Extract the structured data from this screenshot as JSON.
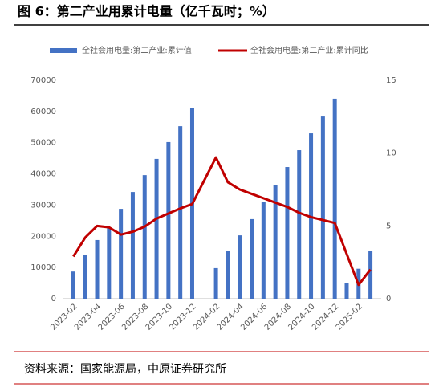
{
  "chart_data": {
    "type": "bar_line",
    "title": "图 6：第二产业用累计电量（亿千瓦时；%）",
    "source": "资料来源：国家能源局，中原证券研究所",
    "categories": [
      "2023-02",
      null,
      "2023-04",
      null,
      "2023-06",
      null,
      "2023-08",
      null,
      "2023-10",
      null,
      "2023-12",
      null,
      "2024-02",
      null,
      "2024-04",
      null,
      "2024-06",
      null,
      "2024-08",
      null,
      "2024-10",
      null,
      "2024-12",
      null,
      "2025-02",
      null
    ],
    "series": [
      {
        "name": "全社会用电量:第二产业:累计值",
        "color": "#4472c4",
        "type": "bar",
        "values": [
          8700,
          13900,
          18800,
          22600,
          28800,
          34200,
          39600,
          44800,
          50200,
          55300,
          61000,
          null,
          9800,
          15200,
          20300,
          25500,
          30900,
          36500,
          42200,
          47600,
          53000,
          58400,
          64100,
          5100,
          9600,
          15200
        ]
      },
      {
        "name": "全社会用电量:第二产业:累计同比",
        "color": "#c00000",
        "type": "line",
        "axis": "y2",
        "values": [
          2.9,
          4.2,
          5.0,
          4.9,
          4.4,
          4.6,
          4.95,
          5.5,
          5.85,
          6.2,
          6.5,
          null,
          9.7,
          8.0,
          7.5,
          7.2,
          6.9,
          6.6,
          6.3,
          5.9,
          5.6,
          5.4,
          5.2,
          null,
          0.95,
          2.0
        ]
      }
    ],
    "ylim": [
      0,
      70000
    ],
    "yticks": [
      0,
      10000,
      20000,
      30000,
      40000,
      50000,
      60000,
      70000
    ],
    "y2lim": [
      0,
      15
    ],
    "y2ticks": [
      0,
      5,
      10,
      15
    ],
    "span_gaps": true,
    "grid": false,
    "legend": "top"
  }
}
